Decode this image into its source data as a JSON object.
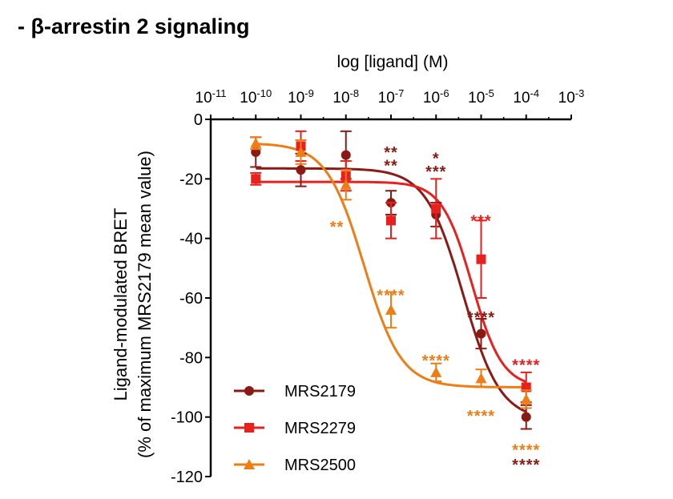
{
  "heading": "- β-arrestin 2 signaling",
  "colors": {
    "MRS2179": "#8b1a14",
    "MRS2279": "#e8211e",
    "MRS2500": "#ee7d16",
    "axis": "#000000"
  },
  "chart_data": {
    "type": "scatter",
    "title": "- β-arrestin 2 signaling",
    "xlabel": "log [ligand] (M)",
    "ylabel_line1": "Ligand-modulated BRET",
    "ylabel_line2": "(% of maximum MRS2179 mean value)",
    "xlim": [
      -11,
      -3
    ],
    "ylim": [
      -120,
      0
    ],
    "x_axis_position": "top",
    "x_ticks": [
      {
        "base": "10",
        "exp": "-11",
        "value": -11
      },
      {
        "base": "10",
        "exp": "-10",
        "value": -10
      },
      {
        "base": "10",
        "exp": "-9",
        "value": -9
      },
      {
        "base": "10",
        "exp": "-8",
        "value": -8
      },
      {
        "base": "10",
        "exp": "-7",
        "value": -7
      },
      {
        "base": "10",
        "exp": "-6",
        "value": -6
      },
      {
        "base": "10",
        "exp": "-5",
        "value": -5
      },
      {
        "base": "10",
        "exp": "-4",
        "value": -4
      },
      {
        "base": "10",
        "exp": "-3",
        "value": -3
      }
    ],
    "y_ticks": [
      0,
      -20,
      -40,
      -60,
      -80,
      -100,
      -120
    ],
    "legend_position": "bottom-left",
    "series": [
      {
        "name": "MRS2179",
        "color_key": "MRS2179",
        "marker": "circle",
        "x": [
          -10,
          -9,
          -8,
          -7,
          -6,
          -5,
          -4
        ],
        "y": [
          -11,
          -17,
          -12,
          -28,
          -32,
          -72,
          -100
        ],
        "err": [
          5,
          5.5,
          8,
          4,
          4,
          5,
          4
        ],
        "fit": {
          "top": -16.5,
          "bottom": -101,
          "logEC50": -5.4,
          "hill": 1.05
        }
      },
      {
        "name": "MRS2279",
        "color_key": "MRS2279",
        "marker": "square",
        "x": [
          -10,
          -9,
          -8,
          -7,
          -6,
          -5,
          -4
        ],
        "y": [
          -20,
          -9,
          -19,
          -34,
          -30,
          -47,
          -90
        ],
        "err": [
          2,
          5,
          5,
          6,
          10,
          13,
          5
        ],
        "fit": {
          "top": -21,
          "bottom": -90,
          "logEC50": -5.2,
          "hill": 1.3
        }
      },
      {
        "name": "MRS2500",
        "color_key": "MRS2500",
        "marker": "triangle",
        "x": [
          -10,
          -9,
          -8,
          -7,
          -6,
          -5,
          -4
        ],
        "y": [
          -8,
          -11,
          -22,
          -64,
          -85,
          -87,
          -94
        ],
        "err": [
          2,
          4,
          5,
          6,
          3,
          3,
          3
        ],
        "fit": {
          "top": -8,
          "bottom": -90,
          "logEC50": -7.6,
          "hill": 1.05
        }
      }
    ],
    "annotations": [
      {
        "text": "**",
        "x": -7,
        "y": -11,
        "color_key": "MRS2179"
      },
      {
        "text": "**",
        "x": -7,
        "y": -15.5,
        "color_key": "MRS2179"
      },
      {
        "text": "*",
        "x": -6,
        "y": -13,
        "color_key": "MRS2179"
      },
      {
        "text": "***",
        "x": -6,
        "y": -17.5,
        "color_key": "MRS2179"
      },
      {
        "text": "**",
        "x": -8.2,
        "y": -36,
        "color_key": "MRS2500"
      },
      {
        "text": "***",
        "x": -5,
        "y": -34,
        "color_key": "MRS2279"
      },
      {
        "text": "****",
        "x": -7,
        "y": -59,
        "color_key": "MRS2500"
      },
      {
        "text": "****",
        "x": -5,
        "y": -66.5,
        "color_key": "MRS2179"
      },
      {
        "text": "****",
        "x": -6,
        "y": -81,
        "color_key": "MRS2500"
      },
      {
        "text": "****",
        "x": -4,
        "y": -82.5,
        "color_key": "MRS2279"
      },
      {
        "text": "****",
        "x": -5,
        "y": -99.5,
        "color_key": "MRS2500"
      },
      {
        "text": "****",
        "x": -4,
        "y": -111,
        "color_key": "MRS2500"
      },
      {
        "text": "****",
        "x": -4,
        "y": -116,
        "color_key": "MRS2179"
      }
    ]
  }
}
